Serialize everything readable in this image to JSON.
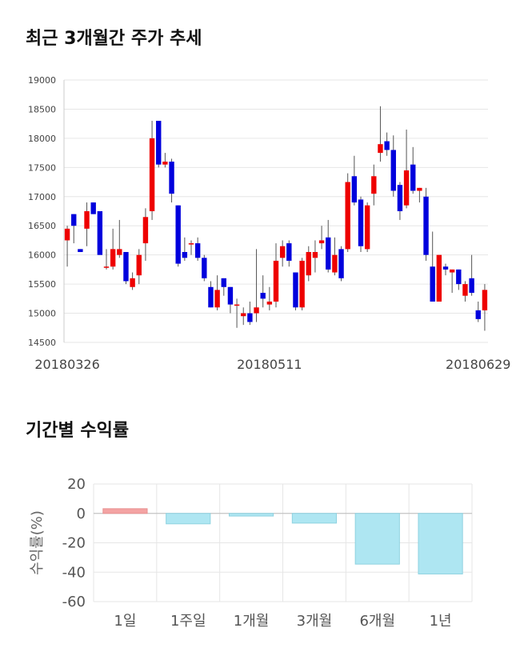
{
  "sections": {
    "price_title": "최근 3개월간 주가 추세",
    "returns_title": "기간별 수익률"
  },
  "chart_data": [
    {
      "type": "candlestick",
      "title": "최근 3개월간 주가 추세",
      "ylim": [
        14500,
        19000
      ],
      "yticks": [
        14500,
        15000,
        15500,
        16000,
        16500,
        17000,
        17500,
        18000,
        18500,
        19000
      ],
      "x_tick_labels": [
        {
          "label": "20180326",
          "index": 0
        },
        {
          "label": "20180511",
          "index": 31
        },
        {
          "label": "20180629",
          "index": 63
        }
      ],
      "colors": {
        "up": "#ee0000",
        "down": "#0000dd",
        "wick": "#555555",
        "grid": "#e6e6e6"
      },
      "ohlc": [
        [
          16250,
          16500,
          15800,
          16450
        ],
        [
          16700,
          16700,
          16200,
          16500
        ],
        [
          16100,
          16100,
          16050,
          16050
        ],
        [
          16450,
          16900,
          16150,
          16750
        ],
        [
          16900,
          16900,
          16700,
          16700
        ],
        [
          16750,
          16750,
          16000,
          16000
        ],
        [
          15800,
          16100,
          15750,
          15800
        ],
        [
          15800,
          16450,
          15750,
          16100
        ],
        [
          16000,
          16600,
          15950,
          16100
        ],
        [
          16050,
          16050,
          15500,
          15550
        ],
        [
          15450,
          15700,
          15400,
          15600
        ],
        [
          15650,
          16100,
          15500,
          16000
        ],
        [
          16200,
          16800,
          15900,
          16650
        ],
        [
          16750,
          18300,
          16600,
          18000
        ],
        [
          18300,
          18300,
          17500,
          17550
        ],
        [
          17550,
          17750,
          17500,
          17600
        ],
        [
          17600,
          17650,
          16900,
          17050
        ],
        [
          16850,
          16850,
          15800,
          15850
        ],
        [
          16050,
          16300,
          15900,
          15950
        ],
        [
          16200,
          16250,
          16000,
          16200
        ],
        [
          16200,
          16300,
          15900,
          15950
        ],
        [
          15950,
          16000,
          15550,
          15600
        ],
        [
          15450,
          15550,
          15100,
          15100
        ],
        [
          15100,
          15650,
          15050,
          15400
        ],
        [
          15600,
          15600,
          15300,
          15450
        ],
        [
          15450,
          15450,
          15000,
          15150
        ],
        [
          15150,
          15250,
          14750,
          15150
        ],
        [
          14950,
          15100,
          14800,
          15000
        ],
        [
          15000,
          15200,
          14800,
          14850
        ],
        [
          15000,
          16100,
          14850,
          15100
        ],
        [
          15350,
          15650,
          15100,
          15250
        ],
        [
          15150,
          15450,
          15050,
          15200
        ],
        [
          15200,
          16200,
          15100,
          15900
        ],
        [
          15950,
          16250,
          15800,
          16150
        ],
        [
          16200,
          16250,
          15800,
          15900
        ],
        [
          15700,
          15700,
          15050,
          15100
        ],
        [
          15100,
          15950,
          15050,
          15900
        ],
        [
          15650,
          16150,
          15550,
          16050
        ],
        [
          15950,
          16250,
          15700,
          16050
        ],
        [
          16200,
          16500,
          16100,
          16250
        ],
        [
          16300,
          16600,
          15700,
          15750
        ],
        [
          15700,
          16300,
          15650,
          16000
        ],
        [
          16100,
          16150,
          15550,
          15600
        ],
        [
          16100,
          17400,
          16050,
          17250
        ],
        [
          17350,
          17700,
          16850,
          16900
        ],
        [
          16950,
          17000,
          16050,
          16150
        ],
        [
          16100,
          16900,
          16050,
          16850
        ],
        [
          17050,
          17550,
          16850,
          17350
        ],
        [
          17750,
          18550,
          17600,
          17900
        ],
        [
          17950,
          18100,
          17700,
          17800
        ],
        [
          17800,
          18050,
          17000,
          17100
        ],
        [
          17200,
          17250,
          16600,
          16750
        ],
        [
          16850,
          18150,
          16800,
          17450
        ],
        [
          17550,
          17850,
          17050,
          17100
        ],
        [
          17100,
          17150,
          16900,
          17150
        ],
        [
          17000,
          17150,
          15900,
          16000
        ],
        [
          15800,
          16400,
          15200,
          15200
        ],
        [
          15200,
          16000,
          15200,
          16000
        ],
        [
          15800,
          15850,
          15650,
          15750
        ],
        [
          15700,
          15750,
          15350,
          15750
        ],
        [
          15750,
          15750,
          15400,
          15500
        ],
        [
          15300,
          15550,
          15200,
          15500
        ],
        [
          15600,
          16000,
          15300,
          15350
        ],
        [
          15050,
          15200,
          14850,
          14900
        ],
        [
          15050,
          15500,
          14700,
          15400
        ]
      ]
    },
    {
      "type": "bar",
      "title": "기간별 수익률",
      "ylabel": "수익률(%)",
      "ylim": [
        -60,
        20
      ],
      "yticks": [
        20,
        0,
        -20,
        -40,
        -60
      ],
      "categories": [
        "1일",
        "1주일",
        "1개월",
        "3개월",
        "6개월",
        "1년"
      ],
      "values": [
        3.2,
        -7.1,
        -1.8,
        -6.6,
        -34.5,
        -41.2
      ],
      "colors": {
        "positive": "#f4a3a3",
        "negative": "#aee6f2",
        "grid": "#e6e6e6"
      }
    }
  ]
}
